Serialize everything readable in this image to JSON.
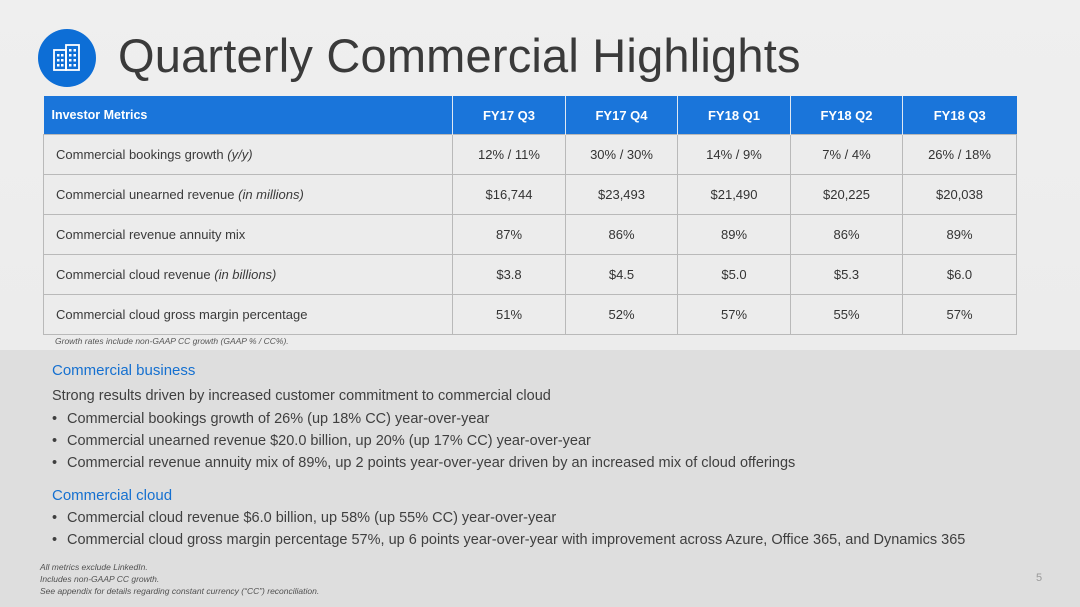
{
  "title": "Quarterly Commercial Highlights",
  "logo": {
    "icon": "building-icon",
    "color": "#0d6ed6"
  },
  "table": {
    "headers": [
      "Investor Metrics",
      "FY17 Q3",
      "FY17 Q4",
      "FY18 Q1",
      "FY18 Q2",
      "FY18 Q3"
    ],
    "rows": [
      {
        "metric": "Commercial bookings growth",
        "qualifier": "(y/y)",
        "values": [
          "12% / 11%",
          "30% / 30%",
          "14% / 9%",
          "7% / 4%",
          "26% / 18%"
        ]
      },
      {
        "metric": "Commercial unearned revenue",
        "qualifier": "(in millions)",
        "values": [
          "$16,744",
          "$23,493",
          "$21,490",
          "$20,225",
          "$20,038"
        ]
      },
      {
        "metric": "Commercial revenue annuity mix",
        "qualifier": "",
        "values": [
          "87%",
          "86%",
          "89%",
          "86%",
          "89%"
        ]
      },
      {
        "metric": "Commercial cloud revenue",
        "qualifier": "(in billions)",
        "values": [
          "$3.8",
          "$4.5",
          "$5.0",
          "$5.3",
          "$6.0"
        ]
      },
      {
        "metric": "Commercial cloud gross margin percentage",
        "qualifier": "",
        "values": [
          "51%",
          "52%",
          "57%",
          "55%",
          "57%"
        ]
      }
    ],
    "footnote": "Growth rates include non-GAAP CC growth (GAAP % / CC%)."
  },
  "business": {
    "heading": "Commercial business",
    "lead": "Strong results driven by increased customer commitment to commercial cloud",
    "bullets": [
      "Commercial bookings growth of 26% (up 18% CC) year-over-year",
      "Commercial unearned revenue $20.0 billion, up 20% (up 17% CC) year-over-year",
      "Commercial revenue annuity mix of 89%, up 2 points year-over-year driven by an increased mix of cloud offerings"
    ]
  },
  "cloud": {
    "heading": "Commercial cloud",
    "bullets": [
      "Commercial cloud revenue $6.0 billion, up 58% (up 55% CC) year-over-year",
      "Commercial cloud gross margin percentage 57%, up 6 points year-over-year with improvement across Azure, Office 365, and Dynamics 365"
    ]
  },
  "notes": [
    "All metrics exclude LinkedIn.",
    "Includes non-GAAP CC growth.",
    "See appendix for details regarding constant currency (“CC”) reconciliation."
  ],
  "page_number": "5",
  "colors": {
    "accent": "#1a75da",
    "heading": "#1570d0"
  }
}
